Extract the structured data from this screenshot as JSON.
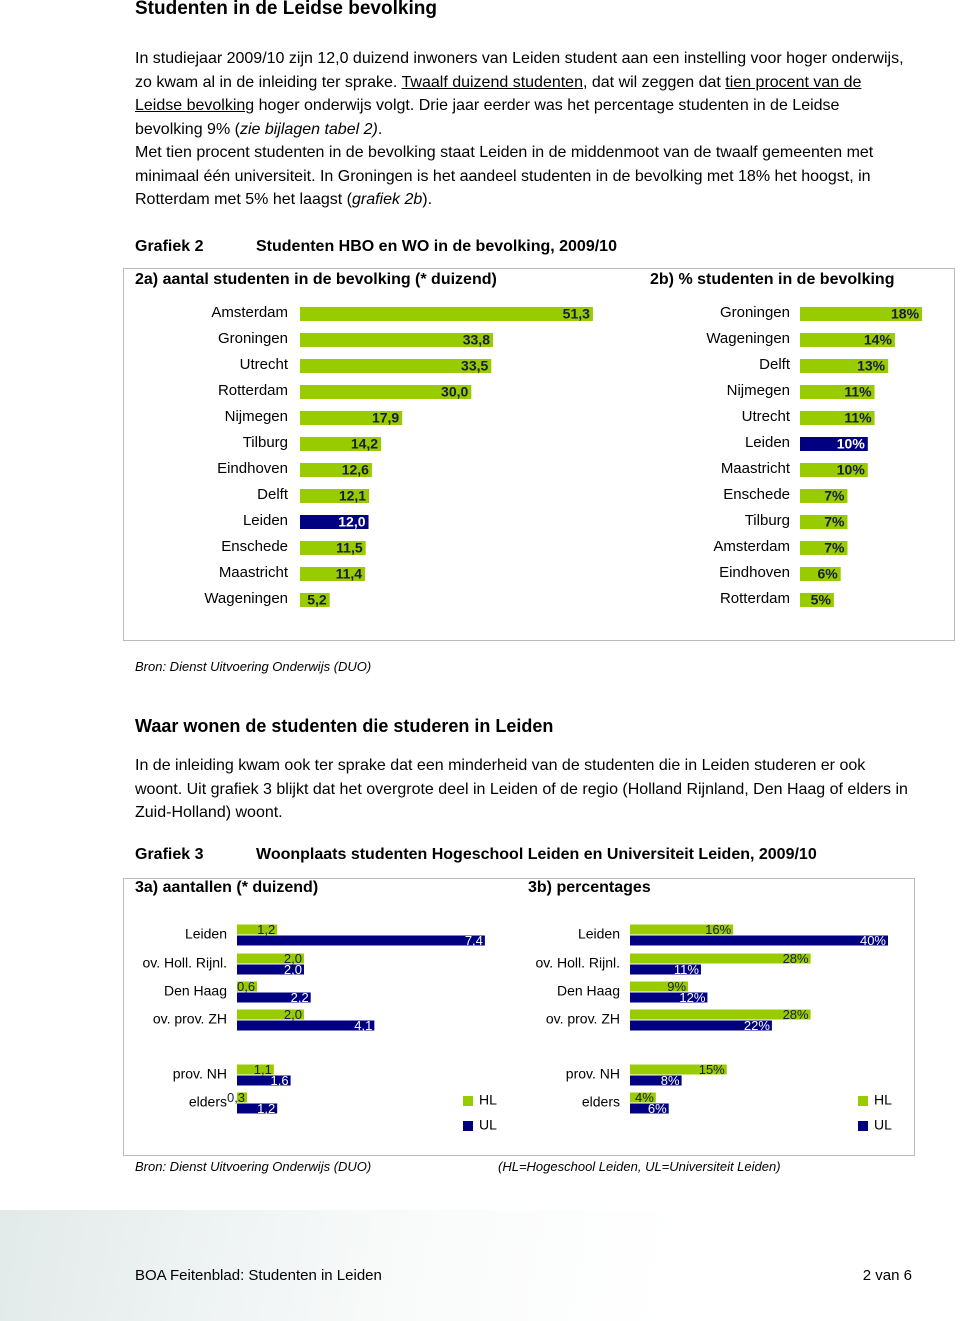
{
  "header": {
    "title": "Studenten in de Leidse bevolking"
  },
  "paragraphs": [
    [
      "In studiejaar 2009/10 zijn 12,0 duizend inwoners van Leiden student aan een instelling voor hoger onderwijs, zo kwam al in de inleiding ter sprake. ",
      "Twaalf duizend studenten",
      ", dat wil zeggen dat ",
      "tien procent van de Leidse bevolking",
      " hoger onderwijs volgt. Drie jaar eerder was het percentage studenten in de Leidse bevolking 9% (",
      "zie bijlagen tabel 2)",
      "."
    ],
    [
      "Met tien procent studenten in de bevolking staat Leiden in de middenmoot van de twaalf gemeenten met minimaal één universiteit. In Groningen is het aandeel studenten in de bevolking met 18% het hoogst, in Rotterdam met 5% het laagst (",
      "grafiek 2b",
      ")."
    ]
  ],
  "figures": [
    {
      "label": "Grafiek 2",
      "title": "Studenten HBO en WO in de bevolking, 2009/10",
      "source": "Bron: Dienst Uitvoering Onderwijs (DUO)"
    },
    {
      "label": "Grafiek 3",
      "title": "Woonplaats studenten Hogeschool Leiden en Universiteit Leiden, 2009/10",
      "source": "Bron: Dienst Uitvoering Onderwijs (DUO)",
      "note": "(HL=Hogeschool Leiden, UL=Universiteit Leiden)"
    }
  ],
  "section": {
    "title": "Waar wonen de studenten die studeren in Leiden",
    "paragraphs": [
      [
        "In de inleiding kwam ook ter sprake dat een minderheid van de studenten die in Leiden studeren er ook woont. Uit grafiek 3 blijkt dat het overgrote deel in Leiden of de regio (Holland Rijnland, Den Haag of elders in Zuid-Holland) woont."
      ]
    ]
  },
  "chart_data": [
    {
      "type": "bar",
      "orientation": "horizontal",
      "title": "2a) aantal studenten in de bevolking (* duizend)",
      "categories": [
        "Amsterdam",
        "Groningen",
        "Utrecht",
        "Rotterdam",
        "Nijmegen",
        "Tilburg",
        "Eindhoven",
        "Delft",
        "Leiden",
        "Enschede",
        "Maastricht",
        "Wageningen"
      ],
      "values": [
        51.3,
        33.8,
        33.5,
        30.0,
        17.9,
        14.2,
        12.6,
        12.1,
        12.0,
        11.5,
        11.4,
        5.2
      ],
      "value_labels": [
        "51,3",
        "33,8",
        "33,5",
        "30,0",
        "17,9",
        "14,2",
        "12,6",
        "12,1",
        "12,0",
        "11,5",
        "11,4",
        "5,2"
      ],
      "colors": [
        "#99cc00",
        "#99cc00",
        "#99cc00",
        "#99cc00",
        "#99cc00",
        "#99cc00",
        "#99cc00",
        "#99cc00",
        "#000080",
        "#99cc00",
        "#99cc00",
        "#99cc00"
      ]
    },
    {
      "type": "bar",
      "orientation": "horizontal",
      "title": "2b) % studenten in de bevolking",
      "categories": [
        "Groningen",
        "Wageningen",
        "Delft",
        "Nijmegen",
        "Utrecht",
        "Leiden",
        "Maastricht",
        "Enschede",
        "Tilburg",
        "Amsterdam",
        "Eindhoven",
        "Rotterdam"
      ],
      "values": [
        18,
        14,
        13,
        11,
        11,
        10,
        10,
        7,
        7,
        7,
        6,
        5
      ],
      "value_labels": [
        "18%",
        "14%",
        "13%",
        "11%",
        "11%",
        "10%",
        "10%",
        "7%",
        "7%",
        "7%",
        "6%",
        "5%"
      ],
      "colors": [
        "#99cc00",
        "#99cc00",
        "#99cc00",
        "#99cc00",
        "#99cc00",
        "#000080",
        "#99cc00",
        "#99cc00",
        "#99cc00",
        "#99cc00",
        "#99cc00",
        "#99cc00"
      ]
    },
    {
      "type": "bar",
      "orientation": "horizontal",
      "title": "3a) aantallen (* duizend)",
      "categories": [
        "Leiden",
        "ov. Holl. Rijnl.",
        "Den Haag",
        "ov. prov. ZH",
        "prov. NH",
        "elders"
      ],
      "series": [
        {
          "name": "HL",
          "color": "#99cc00",
          "values": [
            1.2,
            2.0,
            0.6,
            2.0,
            1.1,
            0.3
          ],
          "value_labels": [
            "1,2",
            "2,0",
            "0,6",
            "2,0",
            "1,1",
            "0,3"
          ]
        },
        {
          "name": "UL",
          "color": "#000080",
          "values": [
            7.4,
            2.0,
            2.2,
            4.1,
            1.6,
            1.2
          ],
          "value_labels": [
            "7,4",
            "2,0",
            "2,2",
            "4,1",
            "1,6",
            "1,2"
          ]
        }
      ]
    },
    {
      "type": "bar",
      "orientation": "horizontal",
      "title": "3b) percentages",
      "categories": [
        "Leiden",
        "ov. Holl. Rijnl.",
        "Den Haag",
        "ov. prov. ZH",
        "prov. NH",
        "elders"
      ],
      "series": [
        {
          "name": "HL",
          "color": "#99cc00",
          "values": [
            16,
            28,
            9,
            28,
            15,
            4
          ],
          "value_labels": [
            "16%",
            "28%",
            "9%",
            "28%",
            "15%",
            "4%"
          ]
        },
        {
          "name": "UL",
          "color": "#000080",
          "values": [
            40,
            11,
            12,
            22,
            8,
            6
          ],
          "value_labels": [
            "40%",
            "11%",
            "12%",
            "22%",
            "8%",
            "6%"
          ]
        }
      ]
    }
  ],
  "footer": {
    "left": "BOA Feitenblad: Studenten in Leiden",
    "right": "2 van 6"
  }
}
